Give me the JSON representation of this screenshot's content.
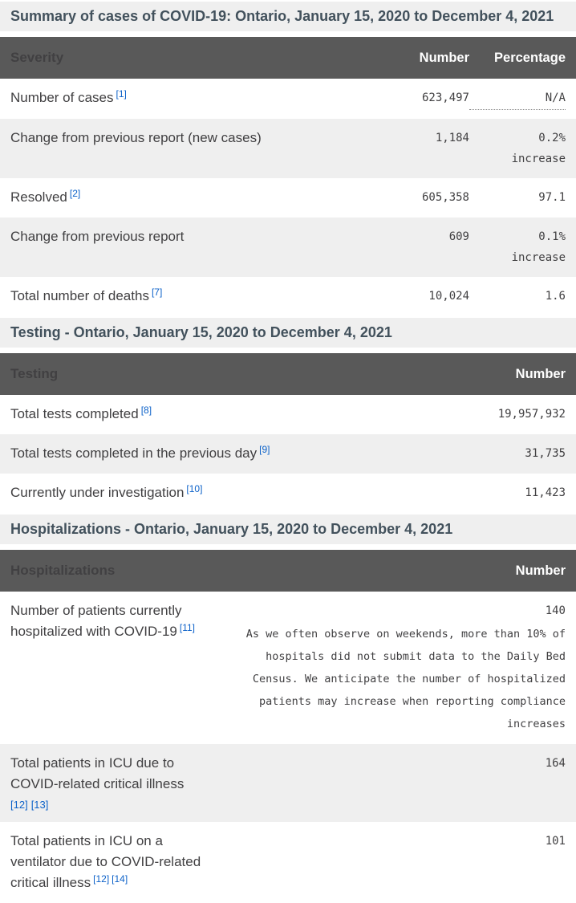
{
  "colors": {
    "header_bg": "#595959",
    "band_bg": "#efefef",
    "link_blue": "#0d62c9",
    "text_dark": "#414042",
    "caption_text": "#42515c"
  },
  "summary": {
    "caption": "Summary of cases of COVID-19: Ontario, January 15, 2020 to December 4, 2021",
    "headers": {
      "severity": "Severity",
      "number": "Number",
      "percentage": "Percentage"
    },
    "rows": [
      {
        "label": "Number of cases",
        "ref1": "[1]",
        "number": "623,497",
        "percentage": "N/A"
      },
      {
        "label": "Change from previous report (new cases)",
        "number": "1,184",
        "percentage": "0.2%",
        "percentage_line2": "increase"
      },
      {
        "label": "Resolved",
        "ref1": "[2]",
        "number": "605,358",
        "percentage": "97.1"
      },
      {
        "label": "Change from previous report",
        "number": "609",
        "percentage": "0.1%",
        "percentage_line2": "increase"
      },
      {
        "label": "Total number of deaths",
        "ref1": "[7]",
        "number": "10,024",
        "percentage": "1.6"
      }
    ]
  },
  "testing": {
    "caption": "Testing - Ontario, January 15, 2020 to December 4, 2021",
    "headers": {
      "testing": "Testing",
      "number": "Number"
    },
    "rows": [
      {
        "label": "Total tests completed",
        "ref1": "[8]",
        "number": "19,957,932"
      },
      {
        "label": "Total tests completed in the previous day",
        "ref1": "[9]",
        "number": "31,735"
      },
      {
        "label": "Currently under investigation",
        "ref1": "[10]",
        "number": "11,423"
      }
    ]
  },
  "hospitalizations": {
    "caption": "Hospitalizations - Ontario, January 15, 2020 to December 4, 2021",
    "headers": {
      "hospitalizations": "Hospitalizations",
      "number": "Number"
    },
    "rows": [
      {
        "label": "Number of patients currently hospitalized with COVID-19",
        "ref1": "[11]",
        "number": "140",
        "note": "As we often observe on weekends, more than 10% of hospitals did not submit data to the Daily Bed Census. We anticipate the number of hospitalized patients may increase when reporting compliance increases"
      },
      {
        "label": "Total patients in ICU due to COVID-related critical illness",
        "ref1": "[12]",
        "ref2": "[13]",
        "number": "164"
      },
      {
        "label": "Total patients in ICU on a ventilator due to COVID-related critical illness",
        "ref1": "[12]",
        "ref2": "[14]",
        "number": "101"
      }
    ]
  }
}
